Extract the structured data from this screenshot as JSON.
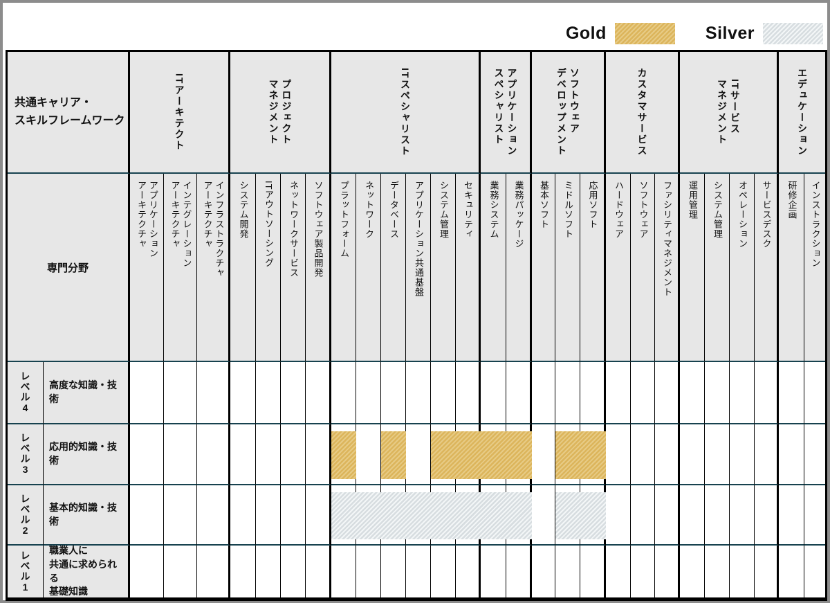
{
  "legend": {
    "gold_label": "Gold",
    "silver_label": "Silver",
    "gold_color": "#dcb55c",
    "gold_stripe_color": "#e7cb85",
    "silver_color": "#d7dde0",
    "silver_stripe_color": "#f3f6f7"
  },
  "table": {
    "title": "共通キャリア・\nスキルフレームワーク",
    "specialty_header": "専門分野",
    "groups": [
      {
        "label": "ITアーキテクト",
        "columns": [
          "アプリケーション\nアーキテクチャ",
          "インテグレーション\nアーキテクチャ",
          "インフラストラクチャ\nアーキテクチャ"
        ]
      },
      {
        "label": "プロジェクト\nマネジメント",
        "columns": [
          "システム開発",
          "ITアウトソーシング",
          "ネットワークサービス",
          "ソフトウェア製品開発"
        ]
      },
      {
        "label": "ITスペシャリスト",
        "columns": [
          "プラットフォーム",
          "ネットワーク",
          "データベース",
          "アプリケーション共通基盤",
          "システム管理",
          "セキュリティ"
        ]
      },
      {
        "label": "アプリケーション\nスペシャリスト",
        "columns": [
          "業務システム",
          "業務パッケージ"
        ]
      },
      {
        "label": "ソフトウェア\nデベロップメント",
        "columns": [
          "基本ソフト",
          "ミドルソフト",
          "応用ソフト"
        ]
      },
      {
        "label": "カスタマサービス",
        "columns": [
          "ハードウェア",
          "ソフトウェア",
          "ファシリティマネジメント"
        ]
      },
      {
        "label": "ITサービス\nマネジメント",
        "columns": [
          "運用管理",
          "システム管理",
          "オペレーション",
          "サービスデスク"
        ]
      },
      {
        "label": "エデュケーション",
        "columns": [
          "研修企画",
          "インストラクション"
        ]
      }
    ],
    "levels": [
      {
        "label": "レベル4",
        "description": "高度な知識・技術"
      },
      {
        "label": "レベル3",
        "description": "応用的知識・技術"
      },
      {
        "label": "レベル2",
        "description": "基本的知識・技術"
      },
      {
        "label": "レベル1",
        "description": "職業人に\n共通に求められる\n基礎知識"
      }
    ],
    "marks": [
      {
        "type": "gold",
        "row": "レベル3",
        "row_index": 1,
        "col_start": 7,
        "col_end": 7,
        "columns": [
          "プラットフォーム"
        ]
      },
      {
        "type": "gold",
        "row": "レベル3",
        "row_index": 1,
        "col_start": 9,
        "col_end": 9,
        "columns": [
          "データベース"
        ]
      },
      {
        "type": "gold",
        "row": "レベル3",
        "row_index": 1,
        "col_start": 11,
        "col_end": 14,
        "columns": [
          "システム管理",
          "セキュリティ",
          "業務システム",
          "業務パッケージ"
        ]
      },
      {
        "type": "gold",
        "row": "レベル3",
        "row_index": 1,
        "col_start": 16,
        "col_end": 17,
        "columns": [
          "ミドルソフト",
          "応用ソフト"
        ]
      },
      {
        "type": "silver",
        "row": "レベル2",
        "row_index": 2,
        "col_start": 7,
        "col_end": 14,
        "columns": [
          "プラットフォーム",
          "ネットワーク",
          "データベース",
          "アプリケーション共通基盤",
          "システム管理",
          "セキュリティ",
          "業務システム",
          "業務パッケージ"
        ]
      },
      {
        "type": "silver",
        "row": "レベル2",
        "row_index": 2,
        "col_start": 16,
        "col_end": 17,
        "columns": [
          "ミドルソフト",
          "応用ソフト"
        ]
      }
    ]
  }
}
